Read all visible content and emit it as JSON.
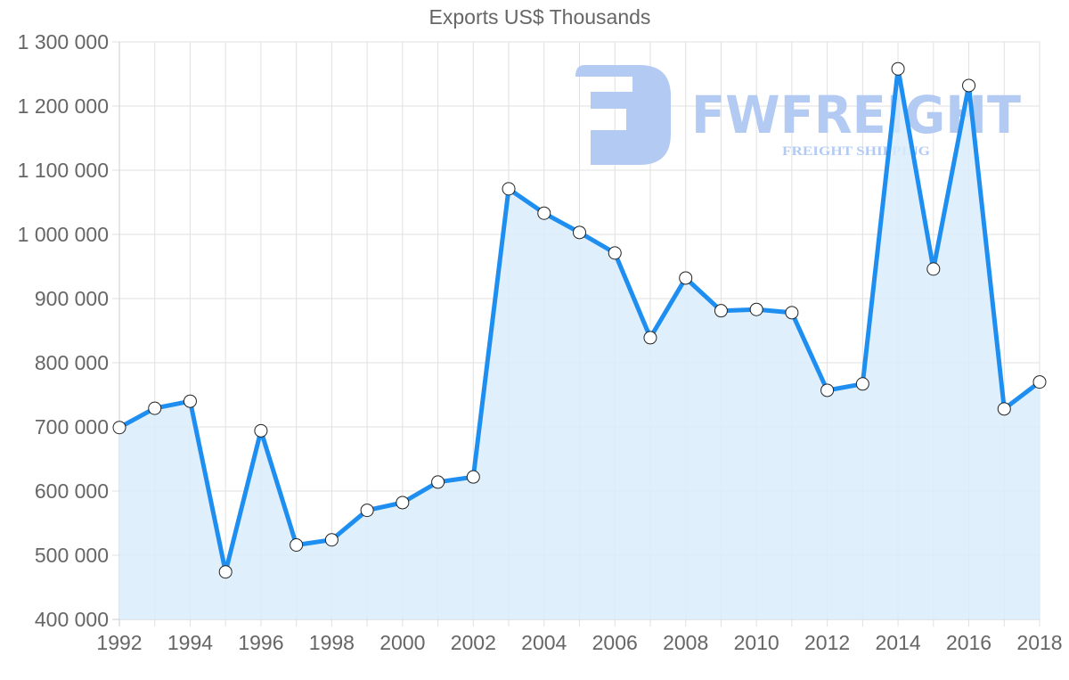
{
  "chart_data": {
    "type": "area",
    "title": "Exports US$ Thousands",
    "xlabel": "",
    "ylabel": "",
    "x": [
      1992,
      1993,
      1994,
      1995,
      1996,
      1997,
      1998,
      1999,
      2000,
      2001,
      2002,
      2003,
      2004,
      2005,
      2006,
      2007,
      2008,
      2009,
      2010,
      2011,
      2012,
      2013,
      2014,
      2015,
      2016,
      2017,
      2018
    ],
    "series": [
      {
        "name": "Exports US$ Thousands",
        "values": [
          699000,
          729000,
          740000,
          474000,
          694000,
          516000,
          524000,
          570000,
          582000,
          614000,
          622000,
          1071000,
          1033000,
          1003000,
          971000,
          839000,
          932000,
          881000,
          883000,
          878000,
          757000,
          767000,
          1258000,
          946000,
          1232000,
          728000,
          770000
        ]
      }
    ],
    "ylim": [
      400000,
      1300000
    ],
    "y_ticks": [
      "400 000",
      "500 000",
      "600 000",
      "700 000",
      "800 000",
      "900 000",
      "1 000 000",
      "1 100 000",
      "1 200 000",
      "1 300 000"
    ],
    "x_ticks": [
      "1992",
      "1994",
      "1996",
      "1998",
      "2000",
      "2002",
      "2004",
      "2006",
      "2008",
      "2010",
      "2012",
      "2014",
      "2016",
      "2018"
    ],
    "grid": true,
    "legend": "none",
    "colors": {
      "line": "#1e8ff0",
      "fill": "#d9ecfc",
      "point_fill": "#ffffff",
      "point_stroke": "#222222",
      "grid": "#e0e0e0",
      "text": "#666666"
    }
  },
  "watermark": {
    "brand": "FWFREIGHT",
    "tagline": "FREIGHT SHIPPING",
    "color": "#b3cbf2"
  }
}
